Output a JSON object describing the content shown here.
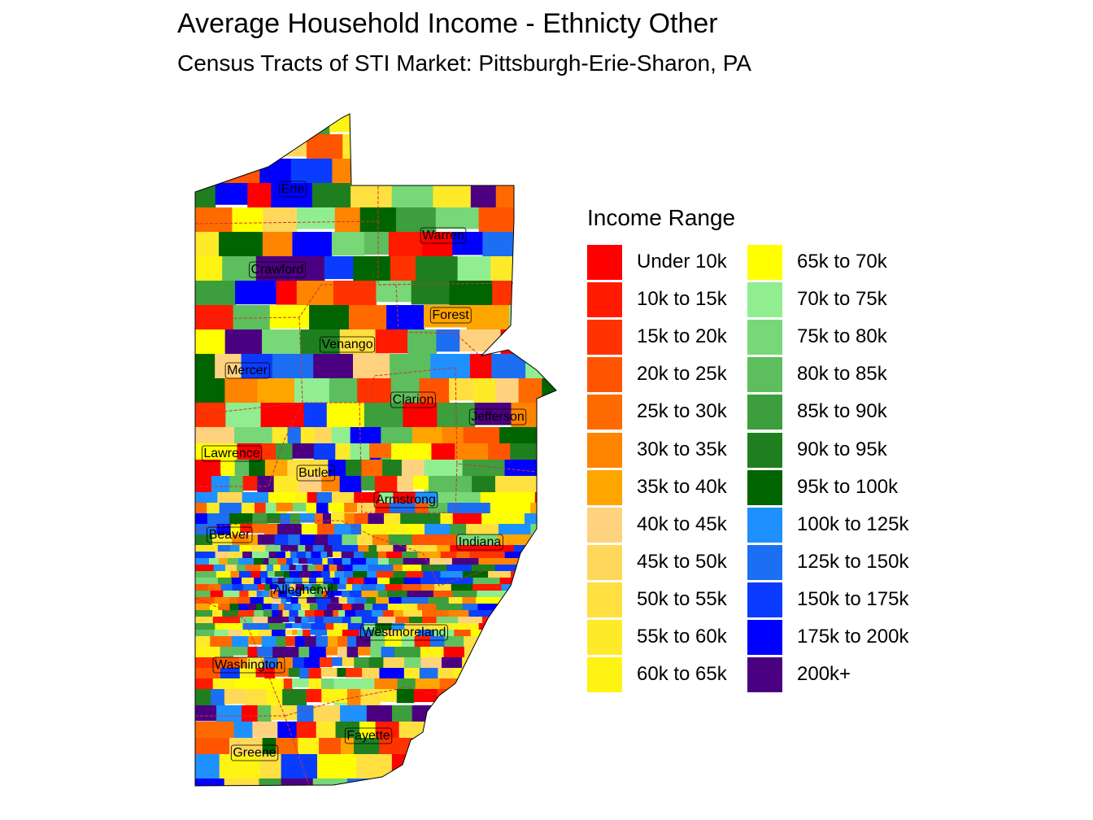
{
  "title": "Average Household Income - Ethnicty Other",
  "subtitle": "Census Tracts of STI Market: Pittsburgh-Erie-Sharon, PA",
  "legend": {
    "title": "Income Range",
    "items": [
      {
        "label": "Under 10k",
        "color": "#FF0000"
      },
      {
        "label": "10k to 15k",
        "color": "#FF1A00"
      },
      {
        "label": "15k to 20k",
        "color": "#FF3300"
      },
      {
        "label": "20k to 25k",
        "color": "#FF5500"
      },
      {
        "label": "25k to 30k",
        "color": "#FF6A00"
      },
      {
        "label": "30k to 35k",
        "color": "#FF8400"
      },
      {
        "label": "35k to 40k",
        "color": "#FFA500"
      },
      {
        "label": "40k to 45k",
        "color": "#FFD27F"
      },
      {
        "label": "45k to 50k",
        "color": "#FFD75A"
      },
      {
        "label": "50k to 55k",
        "color": "#FFE040"
      },
      {
        "label": "55k to 60k",
        "color": "#FFEA2A"
      },
      {
        "label": "60k to 65k",
        "color": "#FFF314"
      },
      {
        "label": "65k to 70k",
        "color": "#FFFF00"
      },
      {
        "label": "70k to 75k",
        "color": "#90EE90"
      },
      {
        "label": "75k to 80k",
        "color": "#78D878"
      },
      {
        "label": "80k to 85k",
        "color": "#5DBE5D"
      },
      {
        "label": "85k to 90k",
        "color": "#3C9E3C"
      },
      {
        "label": "90k to 95k",
        "color": "#1F7F1F"
      },
      {
        "label": "95k to 100k",
        "color": "#006400"
      },
      {
        "label": "100k to 125k",
        "color": "#1E90FF"
      },
      {
        "label": "125k to 150k",
        "color": "#1C6EF2"
      },
      {
        "label": "150k to 175k",
        "color": "#0A3CFF"
      },
      {
        "label": "175k to 200k",
        "color": "#0000FF"
      },
      {
        "label": "200k+",
        "color": "#4B0082"
      }
    ]
  },
  "map": {
    "counties": [
      {
        "name": "Erie",
        "x": 360,
        "y": 231
      },
      {
        "name": "Warren",
        "x": 545,
        "y": 288
      },
      {
        "name": "Crawford",
        "x": 341,
        "y": 330
      },
      {
        "name": "Forest",
        "x": 554,
        "y": 386
      },
      {
        "name": "Venango",
        "x": 427,
        "y": 422
      },
      {
        "name": "Mercer",
        "x": 304,
        "y": 454
      },
      {
        "name": "Clarion",
        "x": 508,
        "y": 490
      },
      {
        "name": "Jefferson",
        "x": 612,
        "y": 511
      },
      {
        "name": "Lawrence",
        "x": 285,
        "y": 556
      },
      {
        "name": "Butler",
        "x": 388,
        "y": 580
      },
      {
        "name": "Armstrong",
        "x": 499,
        "y": 613
      },
      {
        "name": "Indiana",
        "x": 590,
        "y": 665
      },
      {
        "name": "Beaver",
        "x": 282,
        "y": 656
      },
      {
        "name": "Allegheny",
        "x": 371,
        "y": 724
      },
      {
        "name": "Westmoreland",
        "x": 497,
        "y": 776
      },
      {
        "name": "Washington",
        "x": 306,
        "y": 816
      },
      {
        "name": "Fayette",
        "x": 453,
        "y": 903
      },
      {
        "name": "Greene",
        "x": 313,
        "y": 924
      }
    ]
  }
}
